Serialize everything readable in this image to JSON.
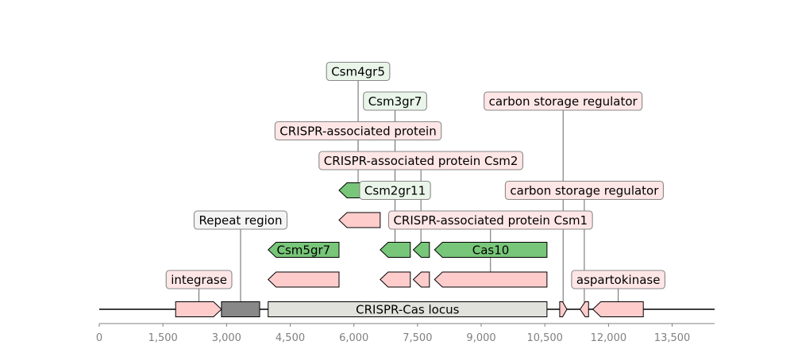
{
  "colors": {
    "pink": "#ffcccc",
    "green": "#78c679",
    "gray": "#888888",
    "locus": "#e2e2dd",
    "label_pink": "#ffe6e6",
    "label_green": "#eaf5ea",
    "label_plain": "#f4f4f4",
    "axis_text": "#808080"
  },
  "axis": {
    "min": 0,
    "max": 14500,
    "ticks": [
      {
        "value": 0,
        "label": "0"
      },
      {
        "value": 1500,
        "label": "1,500"
      },
      {
        "value": 3000,
        "label": "3,000"
      },
      {
        "value": 4500,
        "label": "4,500"
      },
      {
        "value": 6000,
        "label": "6,000"
      },
      {
        "value": 7500,
        "label": "7,500"
      },
      {
        "value": 9000,
        "label": "9,000"
      },
      {
        "value": 10500,
        "label": "10,500"
      },
      {
        "value": 12000,
        "label": "12,000"
      },
      {
        "value": 13500,
        "label": "13,500"
      }
    ]
  },
  "baseline_features": [
    {
      "name": "integrase-feature",
      "start": 1800,
      "end": 2880,
      "strand": 1,
      "color": "pink",
      "label": ""
    },
    {
      "name": "repeat-region-feature",
      "start": 2880,
      "end": 3780,
      "strand": 0,
      "color": "gray",
      "label": ""
    },
    {
      "name": "crispr-cas-locus-feature",
      "start": 3980,
      "end": 10550,
      "strand": 0,
      "color": "locus",
      "label": "CRISPR-Cas locus"
    },
    {
      "name": "carbon-storage-regulator-1-feature",
      "start": 10850,
      "end": 11020,
      "strand": 1,
      "color": "pink",
      "label": ""
    },
    {
      "name": "carbon-storage-regulator-2-feature",
      "start": 11330,
      "end": 11530,
      "strand": -1,
      "color": "pink",
      "label": ""
    },
    {
      "name": "aspartokinase-feature",
      "start": 11630,
      "end": 12820,
      "strand": -1,
      "color": "pink",
      "label": ""
    }
  ],
  "row_features": [
    {
      "name": "csm5gr7-pink-feature",
      "row": 1,
      "start": 3980,
      "end": 5650,
      "strand": -1,
      "color": "pink",
      "label": ""
    },
    {
      "name": "csm2-pink-feature",
      "row": 1,
      "start": 6620,
      "end": 7330,
      "strand": -1,
      "color": "pink",
      "label": ""
    },
    {
      "name": "csm1-small-pink-feature",
      "row": 1,
      "start": 7400,
      "end": 7780,
      "strand": -1,
      "color": "pink",
      "label": ""
    },
    {
      "name": "cas10-pink-feature",
      "row": 1,
      "start": 7900,
      "end": 10550,
      "strand": -1,
      "color": "pink",
      "label": ""
    },
    {
      "name": "csm5gr7-green-feature",
      "row": 2,
      "start": 3980,
      "end": 5650,
      "strand": -1,
      "color": "green",
      "label": "Csm5gr7"
    },
    {
      "name": "csm2-green-feature",
      "row": 2,
      "start": 6620,
      "end": 7330,
      "strand": -1,
      "color": "green",
      "label": ""
    },
    {
      "name": "csm1-small-green-feature",
      "row": 2,
      "start": 7400,
      "end": 7780,
      "strand": -1,
      "color": "green",
      "label": ""
    },
    {
      "name": "cas10-green-feature",
      "row": 2,
      "start": 7900,
      "end": 10550,
      "strand": -1,
      "color": "green",
      "label": "Cas10"
    },
    {
      "name": "crispr-associated-pink-feature",
      "row": 3,
      "start": 5650,
      "end": 6620,
      "strand": -1,
      "color": "pink",
      "label": ""
    },
    {
      "name": "csm4gr5-green-feature",
      "row": 4,
      "start": 5650,
      "end": 6620,
      "strand": -1,
      "color": "green",
      "label": ""
    }
  ],
  "callouts": [
    {
      "name": "callout-integrase",
      "text": "integrase",
      "anchor": 2350,
      "line_end_row": 0,
      "label_row": 1,
      "style": "label_pink"
    },
    {
      "name": "callout-aspartokinase",
      "text": "aspartokinase",
      "anchor": 12230,
      "line_end_row": 0,
      "label_row": 1,
      "style": "label_pink"
    },
    {
      "name": "callout-repeat-region",
      "text": "Repeat region",
      "anchor": 3330,
      "line_end_row": 0,
      "label_row": 3,
      "style": "label_plain"
    },
    {
      "name": "callout-csm1",
      "text": "CRISPR-associated protein Csm1",
      "anchor": 9220,
      "line_end_row": 1,
      "label_row": 3,
      "style": "label_pink"
    },
    {
      "name": "callout-csm2gr11",
      "text": "Csm2gr11",
      "anchor": 6970,
      "line_end_row": 2,
      "label_row": 4,
      "style": "label_green"
    },
    {
      "name": "callout-csr-2",
      "text": "carbon storage regulator",
      "anchor": 11430,
      "line_end_row": 0,
      "label_row": 4,
      "style": "label_pink"
    },
    {
      "name": "callout-csm2",
      "text": "CRISPR-associated protein Csm2",
      "anchor": 7580,
      "line_end_row": 2,
      "label_row": 5,
      "style": "label_pink"
    },
    {
      "name": "callout-crispr-associated-protein",
      "text": "CRISPR-associated protein",
      "anchor": 6100,
      "line_end_row": 4,
      "label_row": 6,
      "style": "label_pink"
    },
    {
      "name": "callout-csm3gr7",
      "text": "Csm3gr7",
      "anchor": 6970,
      "line_end_row": 4,
      "label_row": 7,
      "style": "label_green"
    },
    {
      "name": "callout-csr-1",
      "text": "carbon storage regulator",
      "anchor": 10930,
      "line_end_row": 0,
      "label_row": 7,
      "style": "label_pink"
    },
    {
      "name": "callout-csm4gr5",
      "text": "Csm4gr5",
      "anchor": 6100,
      "line_end_row": 5,
      "label_row": 8,
      "style": "label_green"
    }
  ]
}
